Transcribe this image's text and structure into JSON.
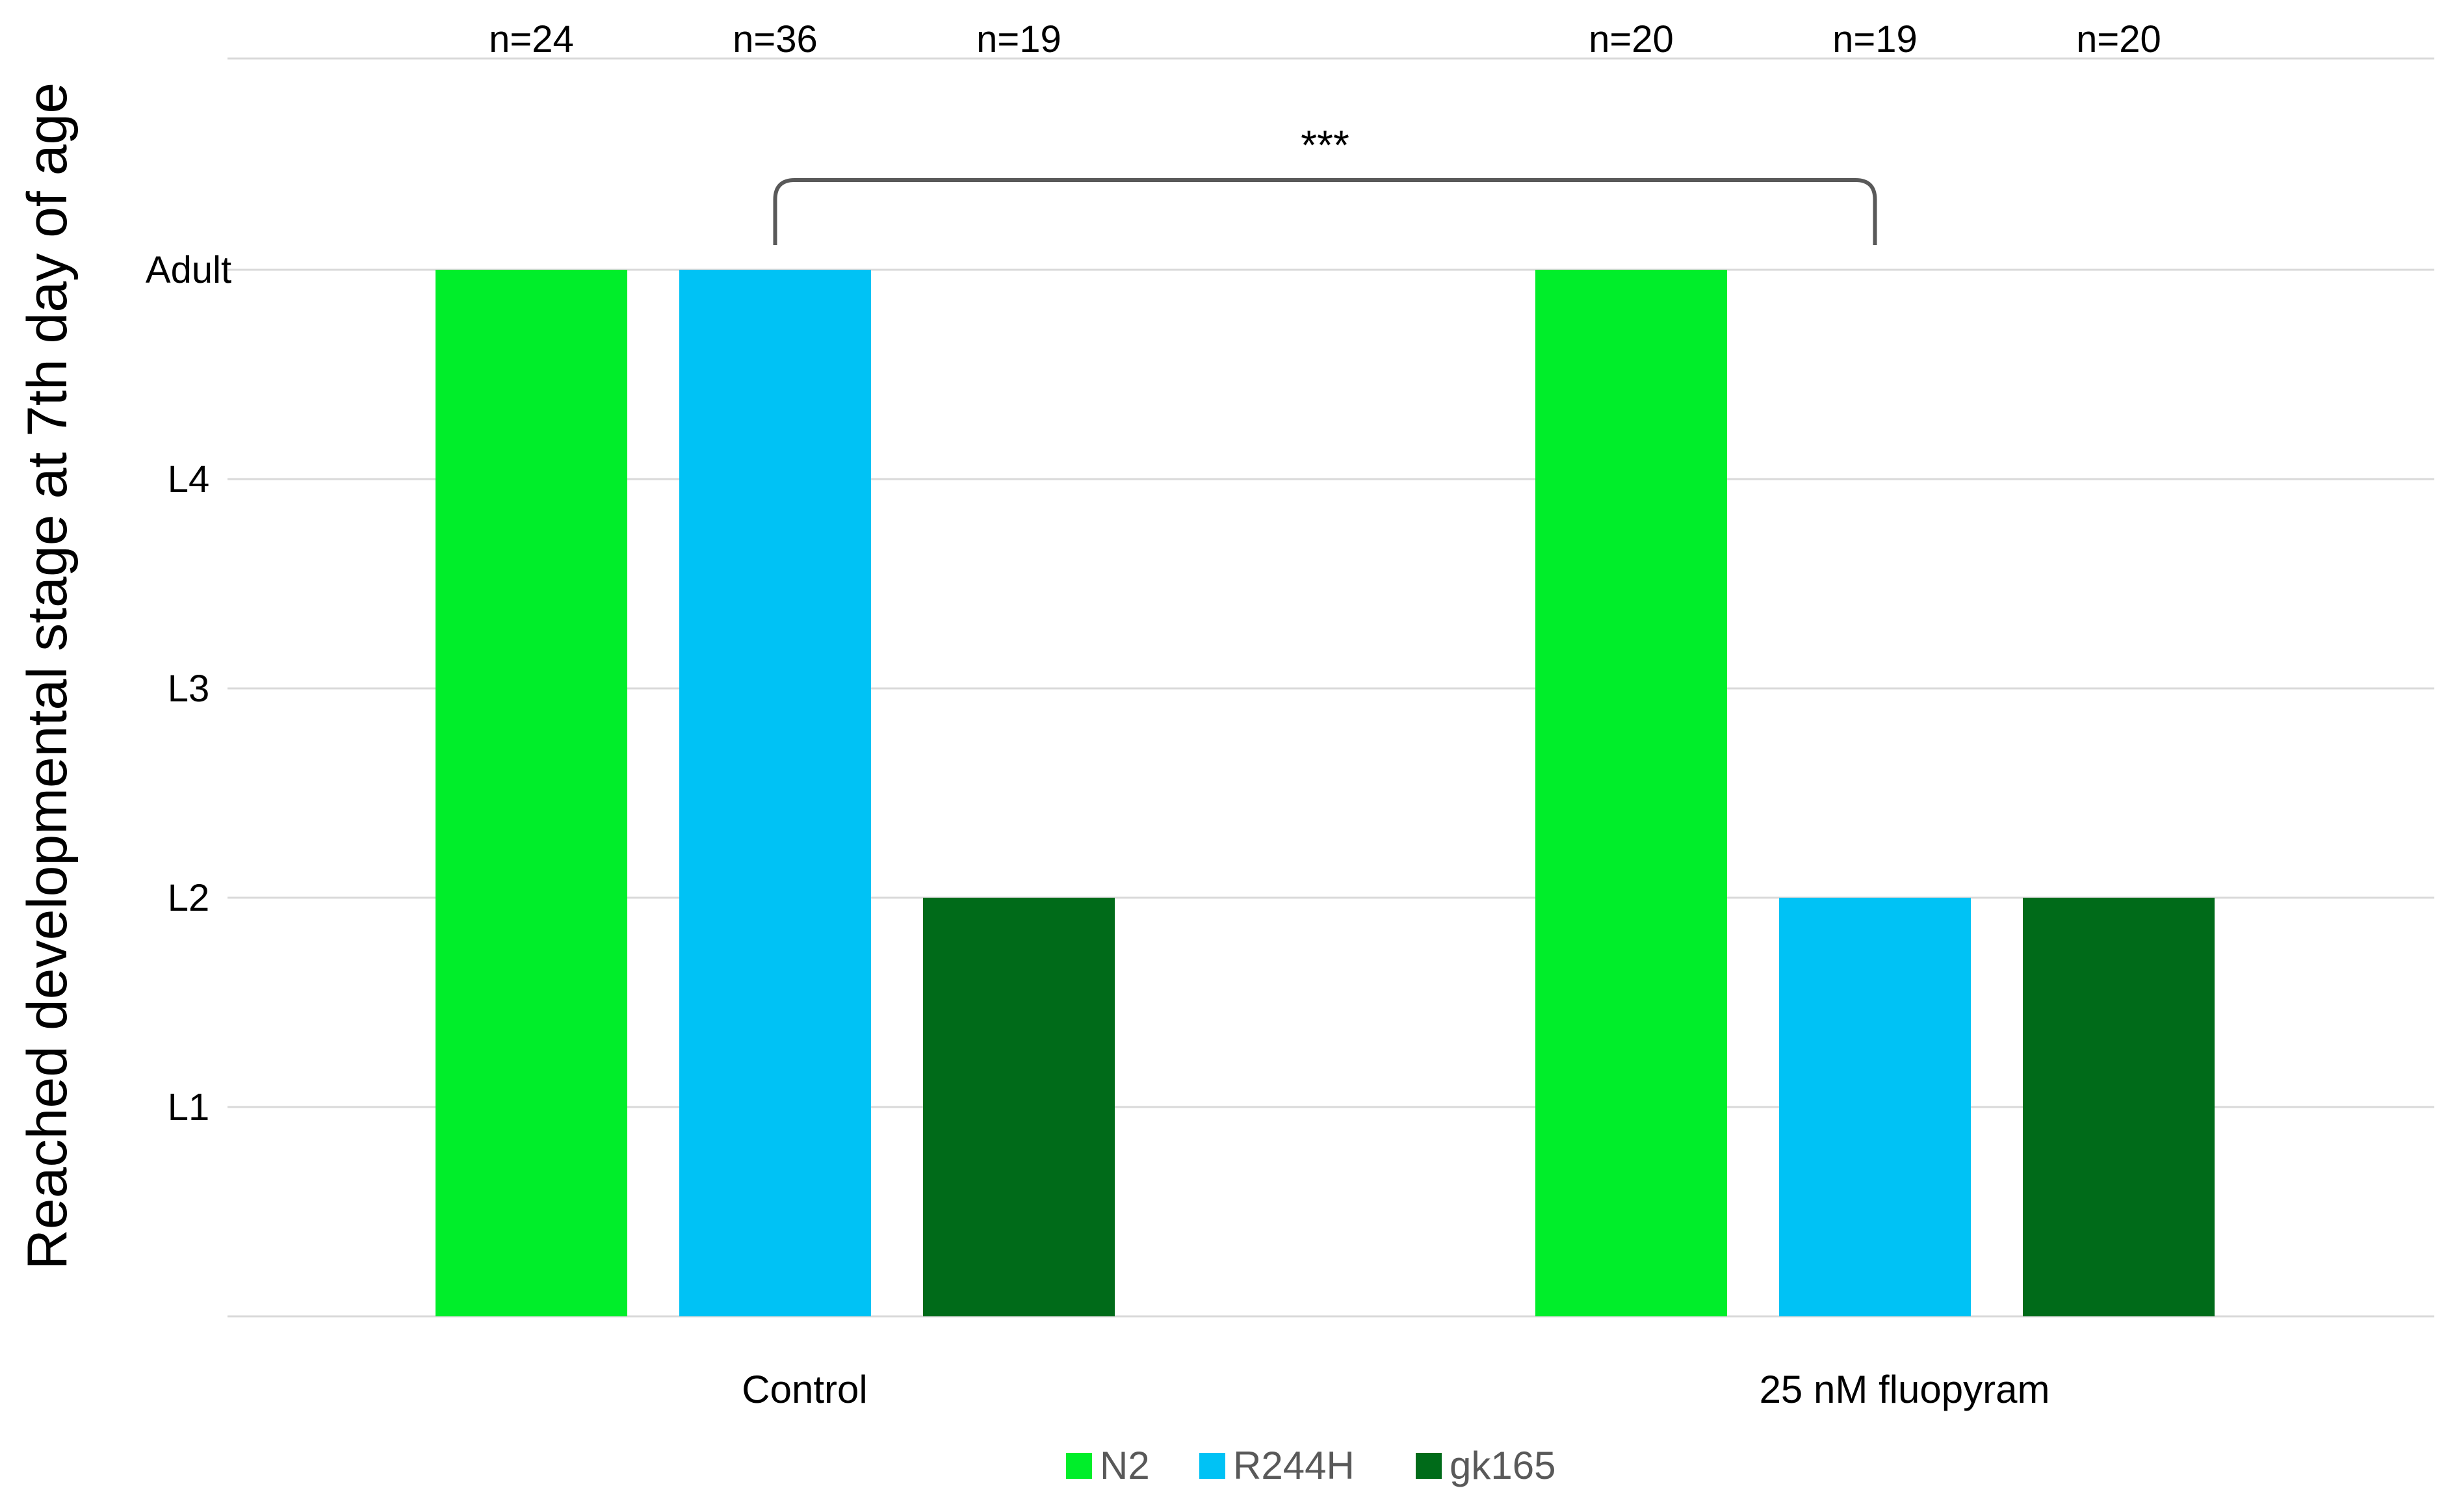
{
  "chart_data": {
    "type": "bar",
    "title": "",
    "xlabel": "",
    "ylabel": "Reached developmental stage at 7th day of age",
    "y_stage_labels": [
      "L1",
      "L2",
      "L3",
      "L4",
      "Adult"
    ],
    "y_stage_values": [
      1,
      2,
      3,
      4,
      5
    ],
    "ylim": [
      0,
      6
    ],
    "grid": true,
    "categories": [
      "Control",
      "25 nM fluopyram"
    ],
    "series": [
      {
        "name": "N2",
        "color": "#00ee2a",
        "values": [
          5,
          5
        ],
        "n_labels": [
          "n=24",
          "n=20"
        ]
      },
      {
        "name": "R244H",
        "color": "#00c2f5",
        "values": [
          5,
          2
        ],
        "n_labels": [
          "n=36",
          "n=19"
        ]
      },
      {
        "name": "gk165",
        "color": "#006b19",
        "values": [
          2,
          2
        ],
        "n_labels": [
          "n=19",
          "n=20"
        ]
      }
    ],
    "annotations": [
      {
        "type": "significance",
        "text": "***",
        "from": "Control / R244H",
        "to": "25 nM fluopyram / R244H"
      }
    ],
    "legend": {
      "position": "bottom",
      "entries": [
        "N2",
        "R244H",
        "gk165"
      ]
    }
  }
}
